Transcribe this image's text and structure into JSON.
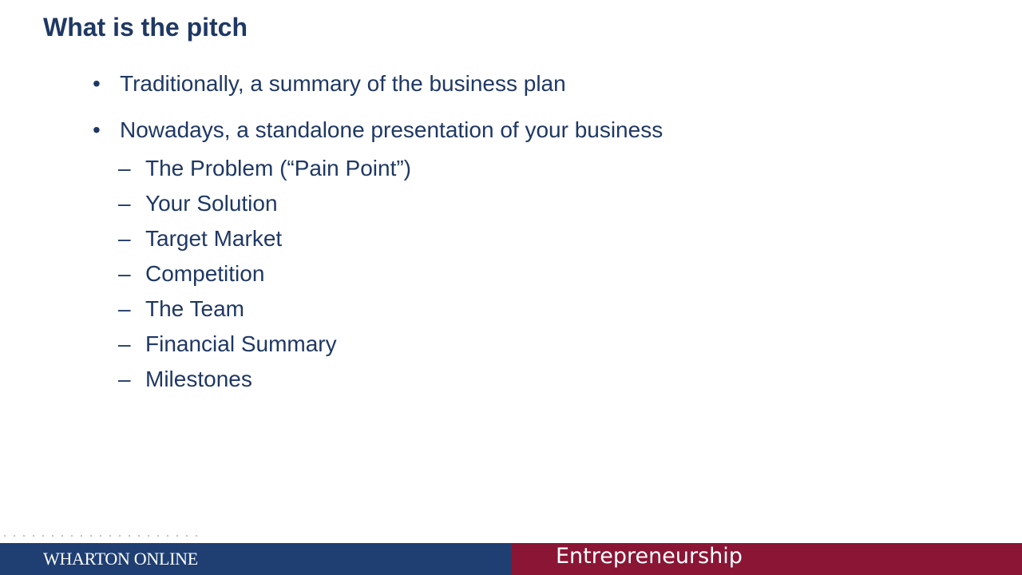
{
  "slide": {
    "title": "What is the pitch",
    "bullets": [
      {
        "marker": "•",
        "text": "Traditionally, a summary of the business plan"
      },
      {
        "marker": "•",
        "text": "Nowadays, a standalone presentation of your business",
        "subitems": [
          {
            "marker": "–",
            "text": "The Problem (“Pain Point”)"
          },
          {
            "marker": "–",
            "text": "Your Solution"
          },
          {
            "marker": "–",
            "text": "Target Market"
          },
          {
            "marker": "–",
            "text": "Competition"
          },
          {
            "marker": "–",
            "text": "The Team"
          },
          {
            "marker": "–",
            "text": "Financial Summary"
          },
          {
            "marker": "–",
            "text": "Milestones"
          }
        ]
      }
    ]
  },
  "footer": {
    "organization": "WHARTON ONLINE",
    "course": "Entrepreneurship",
    "left_color": "#1f3f73",
    "right_color": "#8a1535"
  }
}
